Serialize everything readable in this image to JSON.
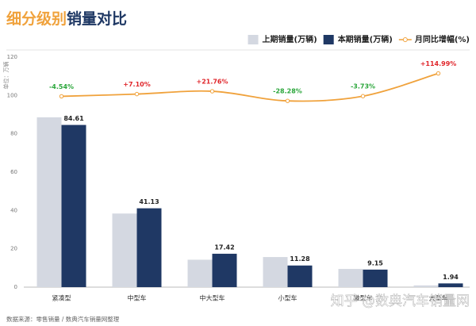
{
  "chart_data": {
    "type": "bar",
    "title": [
      "细分级别",
      "销量对比"
    ],
    "y_axis_label": "单位：万辆",
    "categories": [
      "紧凑型",
      "中型车",
      "中大型车",
      "小型车",
      "微型车",
      "大型车"
    ],
    "series": [
      {
        "name": "上期销量(万辆)",
        "color": "#d4d8e1",
        "values": [
          88.6,
          38.4,
          14.3,
          15.7,
          9.5,
          0.9
        ]
      },
      {
        "name": "本期销量(万辆)",
        "color": "#1f3864",
        "values": [
          84.61,
          41.13,
          17.42,
          11.28,
          9.15,
          1.94
        ]
      },
      {
        "name": "月同比增幅(%)",
        "color": "#f0a23c",
        "type": "line",
        "axis": "y2",
        "smooth": true,
        "values": [
          -4.54,
          7.1,
          21.76,
          -28.28,
          -3.73,
          114.99
        ],
        "value_labels": [
          "-4.54%",
          "+7.10%",
          "+21.76%",
          "-28.28%",
          "-3.73%",
          "+114.99%"
        ]
      }
    ],
    "bar_labels_series": 1,
    "ylim": [
      0,
      120
    ],
    "yticks": [
      0,
      20,
      40,
      60,
      80,
      100,
      120
    ],
    "y2lim": [
      -1000,
      200
    ],
    "grid": false,
    "legend": "top-right",
    "footnote": "数据来源：零售销量 / 数典汽车销量网整理",
    "watermark": "知乎 @数典汽车销量网"
  }
}
